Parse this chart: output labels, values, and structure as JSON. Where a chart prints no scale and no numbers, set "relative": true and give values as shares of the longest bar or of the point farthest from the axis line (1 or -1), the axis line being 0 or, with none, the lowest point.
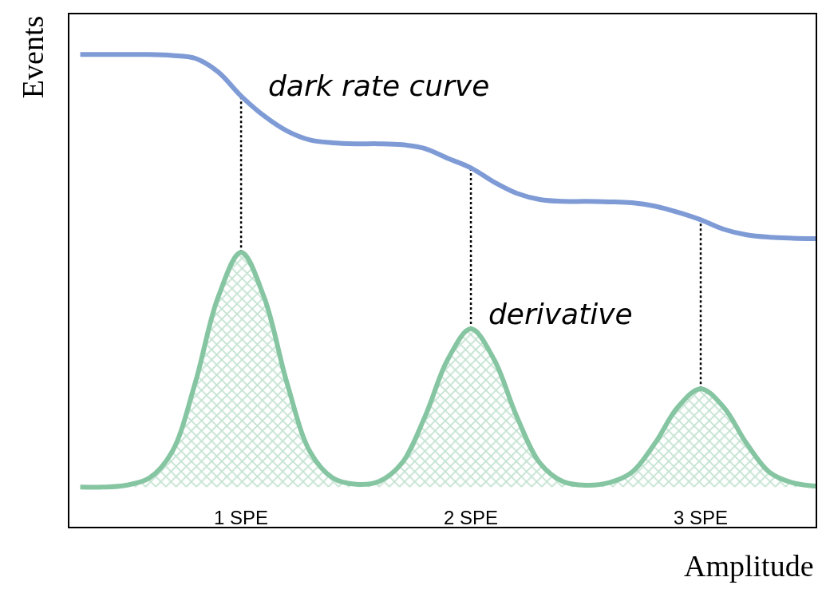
{
  "chart_data": {
    "type": "line",
    "xlabel": "Amplitude",
    "ylabel": "Events",
    "relative": true,
    "grid": false,
    "legend": false,
    "marker": "none",
    "categories": [
      null,
      null,
      null,
      null,
      null,
      null,
      null,
      "1 SPE",
      null,
      null,
      null,
      null,
      null,
      null,
      null,
      null,
      null,
      "2 SPE",
      null,
      null,
      null,
      null,
      null,
      null,
      null,
      null,
      null,
      "3 SPE",
      null,
      null,
      null,
      null,
      null
    ],
    "series": [
      {
        "name": "dark rate curve",
        "color": "#7f9bd6",
        "values": [
          1.0,
          1.0,
          1.0,
          1.0,
          0.998,
          0.992,
          0.963,
          0.912,
          0.87,
          0.838,
          0.819,
          0.813,
          0.811,
          0.811,
          0.809,
          0.801,
          0.78,
          0.76,
          0.73,
          0.706,
          0.693,
          0.689,
          0.689,
          0.688,
          0.686,
          0.679,
          0.666,
          0.65,
          0.63,
          0.618,
          0.613,
          0.611,
          0.61
        ]
      },
      {
        "name": "derivative",
        "type": "area",
        "color": "#86c5a2",
        "values": [
          0.084,
          0.084,
          0.088,
          0.103,
          0.159,
          0.304,
          0.486,
          0.581,
          0.486,
          0.304,
          0.159,
          0.103,
          0.09,
          0.096,
          0.135,
          0.233,
          0.355,
          0.419,
          0.355,
          0.233,
          0.135,
          0.096,
          0.088,
          0.093,
          0.115,
          0.176,
          0.253,
          0.292,
          0.253,
          0.176,
          0.115,
          0.093,
          0.086
        ]
      }
    ],
    "ref_lines": [
      {
        "axis": "x",
        "value": "1 SPE",
        "color": "#000000",
        "line_style": "dotted"
      },
      {
        "axis": "x",
        "value": "2 SPE",
        "color": "#000000",
        "line_style": "dotted"
      },
      {
        "axis": "x",
        "value": "3 SPE",
        "color": "#000000",
        "line_style": "dotted"
      }
    ]
  }
}
